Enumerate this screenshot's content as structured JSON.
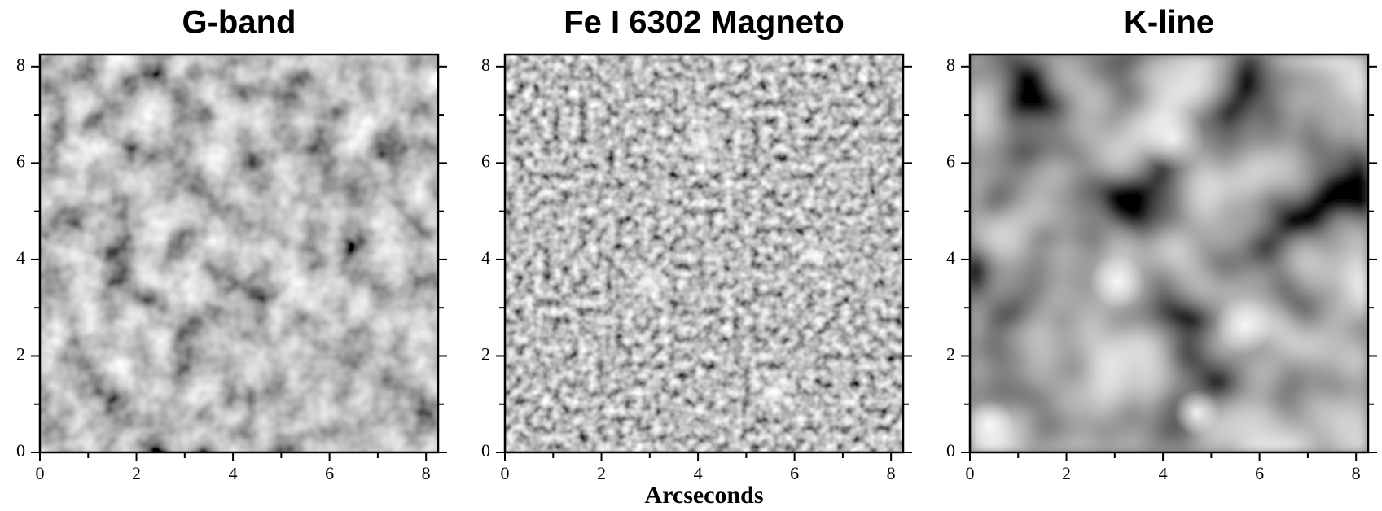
{
  "chart_data": [
    {
      "type": "image",
      "title": "G-band",
      "xlim": [
        0,
        8.25
      ],
      "ylim": [
        0,
        8.25
      ],
      "xticks": [
        0,
        2,
        4,
        6,
        8
      ],
      "yticks": [
        0,
        2,
        4,
        6,
        8
      ],
      "minor_ticks": [
        1,
        3,
        5,
        7
      ]
    },
    {
      "type": "image",
      "title": "Fe I 6302 Magneto",
      "xlabel": "Arcseconds",
      "xlim": [
        0,
        8.25
      ],
      "ylim": [
        0,
        8.25
      ],
      "xticks": [
        0,
        2,
        4,
        6,
        8
      ],
      "yticks": [
        0,
        2,
        4,
        6,
        8
      ],
      "minor_ticks": [
        1,
        3,
        5,
        7
      ]
    },
    {
      "type": "image",
      "title": "K-line",
      "xlim": [
        0,
        8.25
      ],
      "ylim": [
        0,
        8.25
      ],
      "xticks": [
        0,
        2,
        4,
        6,
        8
      ],
      "yticks": [
        0,
        2,
        4,
        6,
        8
      ],
      "minor_ticks": [
        1,
        3,
        5,
        7
      ]
    }
  ]
}
